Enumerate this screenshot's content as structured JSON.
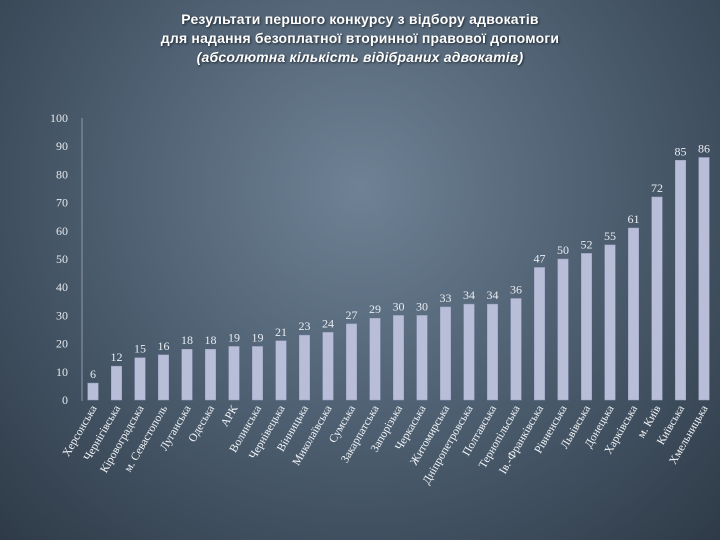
{
  "title": {
    "line1": "Результати першого конкурсу з відбору адвокатів",
    "line2": "для надання безоплатної вторинної правової допомоги",
    "line3": "(абсолютна кількість відібраних адвокатів)"
  },
  "colors": {
    "bar": "#b8bdd8",
    "bar_edge": "#9aa0c2"
  },
  "chart_data": {
    "type": "bar",
    "title": "Результати першого конкурсу з відбору адвокатів для надання безоплатної вторинної правової допомоги (абсолютна кількість відібраних адвокатів)",
    "xlabel": "",
    "ylabel": "",
    "ylim": [
      0,
      100
    ],
    "yticks": [
      0,
      10,
      20,
      30,
      40,
      50,
      60,
      70,
      80,
      90,
      100
    ],
    "grid": false,
    "categories": [
      "Херсонська",
      "Чернігівська",
      "Кіровоградська",
      "м. Севастополь",
      "Луганська",
      "Одеська",
      "АРК",
      "Волинська",
      "Чернівецька",
      "Вінницька",
      "Миколаївська",
      "Сумська",
      "Закарпатська",
      "Запорізька",
      "Черкаська",
      "Житомирська",
      "Дніпропетровська",
      "Полтавська",
      "Тернопільська",
      "Ів.-Франківська",
      "Рівненська",
      "Львівська",
      "Донецька",
      "Харківська",
      "м. Київ",
      "Київська",
      "Хмельницька"
    ],
    "values": [
      6,
      12,
      15,
      16,
      18,
      18,
      19,
      19,
      21,
      23,
      24,
      27,
      29,
      30,
      30,
      33,
      34,
      34,
      36,
      47,
      50,
      52,
      55,
      61,
      72,
      85,
      86
    ]
  }
}
